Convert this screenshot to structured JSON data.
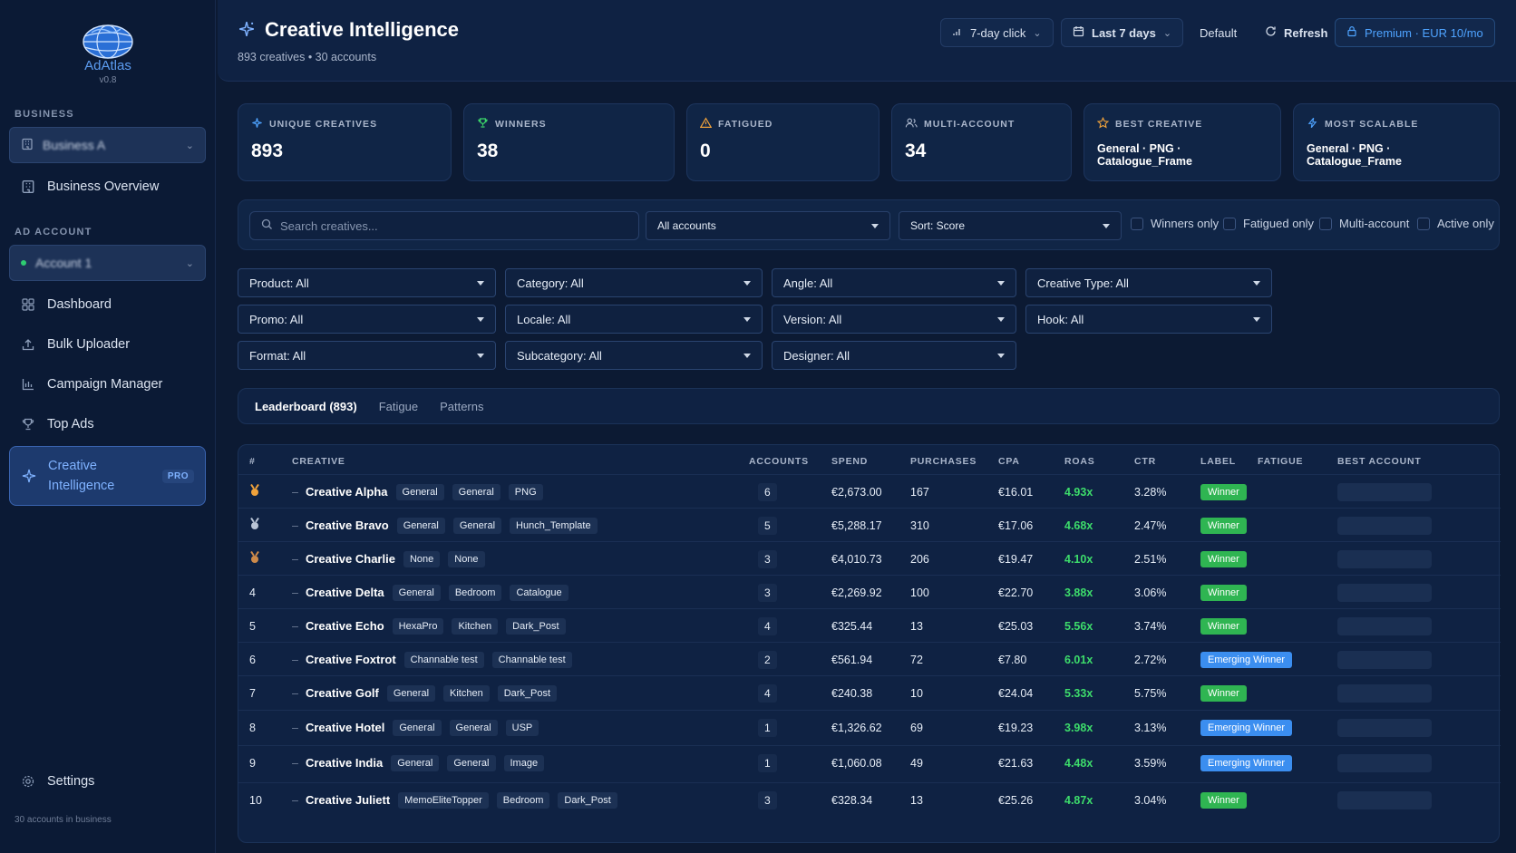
{
  "app": {
    "name": "AdAtlas",
    "version": "v0.8"
  },
  "sidebar": {
    "business_section": "BUSINESS",
    "business_selected": "Business A",
    "business_overview": "Business Overview",
    "ad_account_section": "AD ACCOUNT",
    "account_selected": "Account 1",
    "items": [
      {
        "label": "Dashboard",
        "icon": "grid-icon"
      },
      {
        "label": "Bulk Uploader",
        "icon": "upload-icon"
      },
      {
        "label": "Campaign Manager",
        "icon": "bar-chart-icon"
      },
      {
        "label": "Top Ads",
        "icon": "trophy-icon"
      },
      {
        "label": "Creative Intelligence",
        "icon": "sparkle-icon",
        "badge": "PRO"
      }
    ],
    "settings": "Settings",
    "footer": "30 accounts in business"
  },
  "header": {
    "title": "Creative Intelligence",
    "subtitle": "893 creatives • 30 accounts",
    "attribution": "7-day click",
    "range": "Last 7 days",
    "default": "Default",
    "refresh": "Refresh",
    "premium": "Premium · EUR 10/mo"
  },
  "stats": [
    {
      "label": "UNIQUE CREATIVES",
      "value": "893",
      "icon": "sparkle-icon"
    },
    {
      "label": "WINNERS",
      "value": "38",
      "icon": "trophy-icon"
    },
    {
      "label": "FATIGUED",
      "value": "0",
      "icon": "warning-icon"
    },
    {
      "label": "MULTI-ACCOUNT",
      "value": "34",
      "icon": "users-icon"
    },
    {
      "label": "BEST CREATIVE",
      "value": "General · PNG · Catalogue_Frame",
      "icon": "star-icon"
    },
    {
      "label": "MOST SCALABLE",
      "value": "General · PNG · Catalogue_Frame",
      "icon": "bolt-icon"
    }
  ],
  "filters": {
    "search_placeholder": "Search creatives...",
    "accounts": "All accounts",
    "sort": "Sort: Score",
    "checks": [
      "Winners only",
      "Fatigued only",
      "Multi-account",
      "Active only"
    ],
    "dropdowns": [
      "Product: All",
      "Category: All",
      "Angle: All",
      "Creative Type: All",
      "Promo: All",
      "Locale: All",
      "Version: All",
      "Hook: All",
      "Format: All",
      "Subcategory: All",
      "Designer: All"
    ]
  },
  "tabs": [
    "Leaderboard (893)",
    "Fatigue",
    "Patterns"
  ],
  "table": {
    "headers": [
      "#",
      "CREATIVE",
      "ACCOUNTS",
      "SPEND",
      "PURCHASES",
      "CPA",
      "ROAS",
      "CTR",
      "LABEL",
      "FATIGUE",
      "BEST ACCOUNT"
    ],
    "rows": [
      {
        "rank": "🥇",
        "medal": "gold",
        "name": "Creative Alpha",
        "tags": [
          "General",
          "General",
          "PNG"
        ],
        "accounts": "6",
        "spend": "€2,673.00",
        "purchases": "167",
        "cpa": "€16.01",
        "roas": "4.93x",
        "ctr": "3.28%",
        "label": "Winner",
        "label_type": "winner"
      },
      {
        "rank": "🥈",
        "medal": "silver",
        "name": "Creative Bravo",
        "tags": [
          "General",
          "General",
          "Hunch_Template"
        ],
        "accounts": "5",
        "spend": "€5,288.17",
        "purchases": "310",
        "cpa": "€17.06",
        "roas": "4.68x",
        "ctr": "2.47%",
        "label": "Winner",
        "label_type": "winner"
      },
      {
        "rank": "🥉",
        "medal": "bronze",
        "name": "Creative Charlie",
        "tags": [
          "None",
          "None"
        ],
        "accounts": "3",
        "spend": "€4,010.73",
        "purchases": "206",
        "cpa": "€19.47",
        "roas": "4.10x",
        "ctr": "2.51%",
        "label": "Winner",
        "label_type": "winner"
      },
      {
        "rank": "4",
        "name": "Creative Delta",
        "tags": [
          "General",
          "Bedroom",
          "Catalogue"
        ],
        "accounts": "3",
        "spend": "€2,269.92",
        "purchases": "100",
        "cpa": "€22.70",
        "roas": "3.88x",
        "ctr": "3.06%",
        "label": "Winner",
        "label_type": "winner"
      },
      {
        "rank": "5",
        "name": "Creative Echo",
        "tags": [
          "HexaPro",
          "Kitchen",
          "Dark_Post"
        ],
        "accounts": "4",
        "spend": "€325.44",
        "purchases": "13",
        "cpa": "€25.03",
        "roas": "5.56x",
        "ctr": "3.74%",
        "label": "Winner",
        "label_type": "winner"
      },
      {
        "rank": "6",
        "name": "Creative Foxtrot",
        "tags": [
          "Channable test",
          "Channable test"
        ],
        "accounts": "2",
        "spend": "€561.94",
        "purchases": "72",
        "cpa": "€7.80",
        "roas": "6.01x",
        "ctr": "2.72%",
        "label": "Emerging Winner",
        "label_type": "emerging"
      },
      {
        "rank": "7",
        "name": "Creative Golf",
        "tags": [
          "General",
          "Kitchen",
          "Dark_Post"
        ],
        "accounts": "4",
        "spend": "€240.38",
        "purchases": "10",
        "cpa": "€24.04",
        "roas": "5.33x",
        "ctr": "5.75%",
        "label": "Winner",
        "label_type": "winner"
      },
      {
        "rank": "8",
        "name": "Creative Hotel",
        "tags": [
          "General",
          "General",
          "USP"
        ],
        "accounts": "1",
        "spend": "€1,326.62",
        "purchases": "69",
        "cpa": "€19.23",
        "roas": "3.98x",
        "ctr": "3.13%",
        "label": "Emerging Winner",
        "label_type": "emerging"
      },
      {
        "rank": "9",
        "name": "Creative India",
        "tags": [
          "General",
          "General",
          "Image"
        ],
        "accounts": "1",
        "spend": "€1,060.08",
        "purchases": "49",
        "cpa": "€21.63",
        "roas": "4.48x",
        "ctr": "3.59%",
        "label": "Emerging Winner",
        "label_type": "emerging"
      },
      {
        "rank": "10",
        "name": "Creative Juliett",
        "tags": [
          "MemoEliteTopper",
          "Bedroom",
          "Dark_Post"
        ],
        "accounts": "3",
        "spend": "€328.34",
        "purchases": "13",
        "cpa": "€25.26",
        "roas": "4.87x",
        "ctr": "3.04%",
        "label": "Winner",
        "label_type": "winner"
      }
    ]
  },
  "colors": {
    "accent": "#4ea3ff",
    "winner": "#2fb552",
    "emerging": "#3b8ef0",
    "roas": "#3ddc6b",
    "bg": "#0c1a33"
  }
}
